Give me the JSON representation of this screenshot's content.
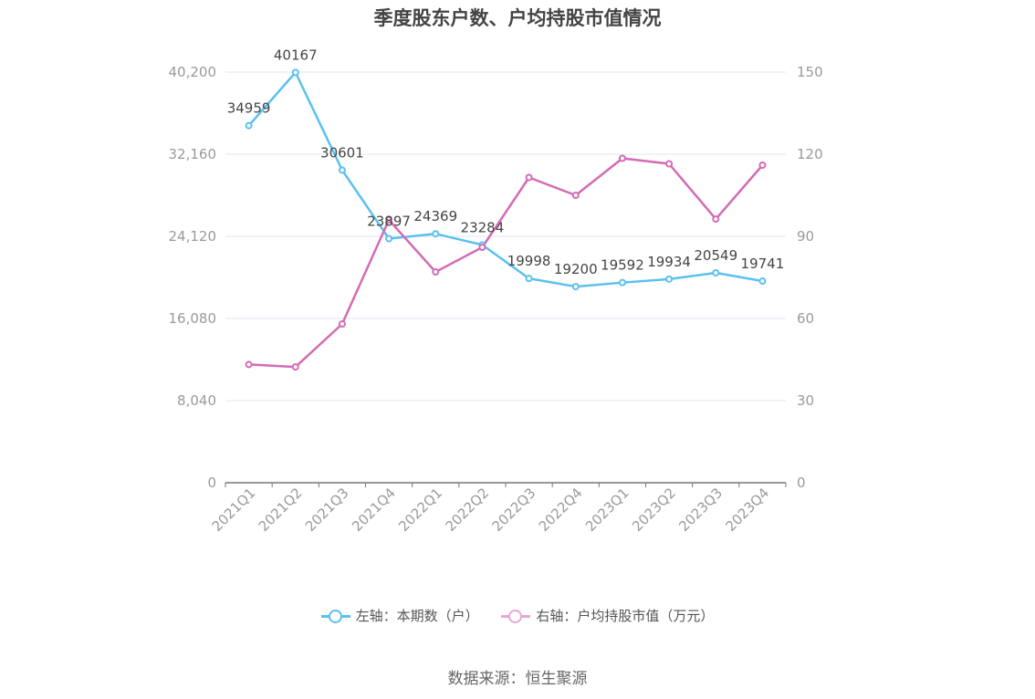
{
  "title": "季度股东户数、户均持股市值情况",
  "source": "数据来源：恒生聚源",
  "legend": [
    {
      "label": "左轴：本期数（户）",
      "color": "#5bc0f0"
    },
    {
      "label": "右轴：户均持股市值（万元）",
      "color": "#e8a8d6"
    }
  ],
  "chart_data": {
    "type": "line",
    "categories": [
      "2021Q1",
      "2021Q2",
      "2021Q3",
      "2021Q4",
      "2022Q1",
      "2022Q2",
      "2022Q3",
      "2022Q4",
      "2023Q1",
      "2023Q2",
      "2023Q3",
      "2023Q4"
    ],
    "left_axis": {
      "min": 0,
      "max": 40200,
      "ticks": [
        "0",
        "8,040",
        "16,080",
        "24,120",
        "32,160",
        "40,200"
      ]
    },
    "right_axis": {
      "min": 0,
      "max": 150,
      "ticks": [
        "0",
        "30",
        "60",
        "90",
        "120",
        "150"
      ]
    },
    "grid": true,
    "legend_position": "bottom",
    "series": [
      {
        "name": "左轴：本期数（户）",
        "axis": "left",
        "color": "#5bc0f0",
        "values": [
          34959,
          40167,
          30601,
          23897,
          24369,
          23284,
          19998,
          19200,
          19592,
          19934,
          20549,
          19741
        ],
        "labels": [
          "34959",
          "40167",
          "30601",
          "23897",
          "24369",
          "23284",
          "19998",
          "19200",
          "19592",
          "19934",
          "20549",
          "19741"
        ]
      },
      {
        "name": "右轴：户均持股市值（万元）",
        "axis": "right",
        "color": "#d46bb4",
        "values": [
          43.2,
          42.3,
          58.0,
          96.0,
          77.0,
          86.0,
          111.5,
          105.0,
          118.5,
          116.5,
          96.3,
          116.0
        ]
      }
    ]
  }
}
